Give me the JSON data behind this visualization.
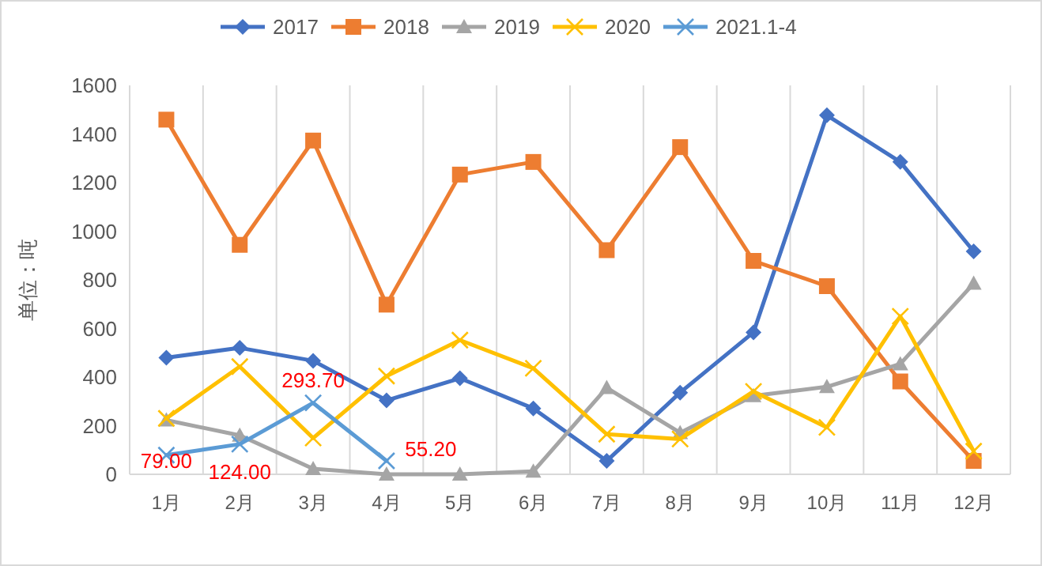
{
  "chart_data": {
    "type": "line",
    "ylabel": "单位：吨",
    "categories": [
      "1月",
      "2月",
      "3月",
      "4月",
      "5月",
      "6月",
      "7月",
      "8月",
      "9月",
      "10月",
      "11月",
      "12月"
    ],
    "ylim": [
      0,
      1600
    ],
    "yticks": [
      0,
      200,
      400,
      600,
      800,
      1000,
      1200,
      1400,
      1600
    ],
    "grid": "x",
    "legend": "top",
    "series": [
      {
        "name": "2017",
        "color": "#4472c4",
        "marker": "diamond",
        "values": [
          480,
          520,
          467,
          304,
          395,
          271,
          55,
          336,
          584,
          1477,
          1285,
          917
        ]
      },
      {
        "name": "2018",
        "color": "#ed7d31",
        "marker": "square",
        "values": [
          1459,
          944,
          1373,
          698,
          1233,
          1285,
          922,
          1346,
          878,
          774,
          382,
          55
        ]
      },
      {
        "name": "2019",
        "color": "#a5a5a5",
        "marker": "triangle",
        "values": [
          223,
          160,
          23,
          0,
          0,
          12,
          356,
          171,
          323,
          360,
          454,
          785
        ]
      },
      {
        "name": "2020",
        "color": "#ffc000",
        "marker": "cross",
        "values": [
          230,
          443,
          149,
          404,
          552,
          436,
          165,
          145,
          341,
          193,
          650,
          95
        ]
      },
      {
        "name": "2021.1-4",
        "color": "#5b9bd5",
        "marker": "cross",
        "values": [
          79,
          124,
          293.7,
          55.2,
          null,
          null,
          null,
          null,
          null,
          null,
          null,
          null
        ],
        "value_labels": [
          "79.00",
          "124.00",
          "293.70",
          "55.20",
          null,
          null,
          null,
          null,
          null,
          null,
          null,
          null
        ]
      }
    ]
  }
}
